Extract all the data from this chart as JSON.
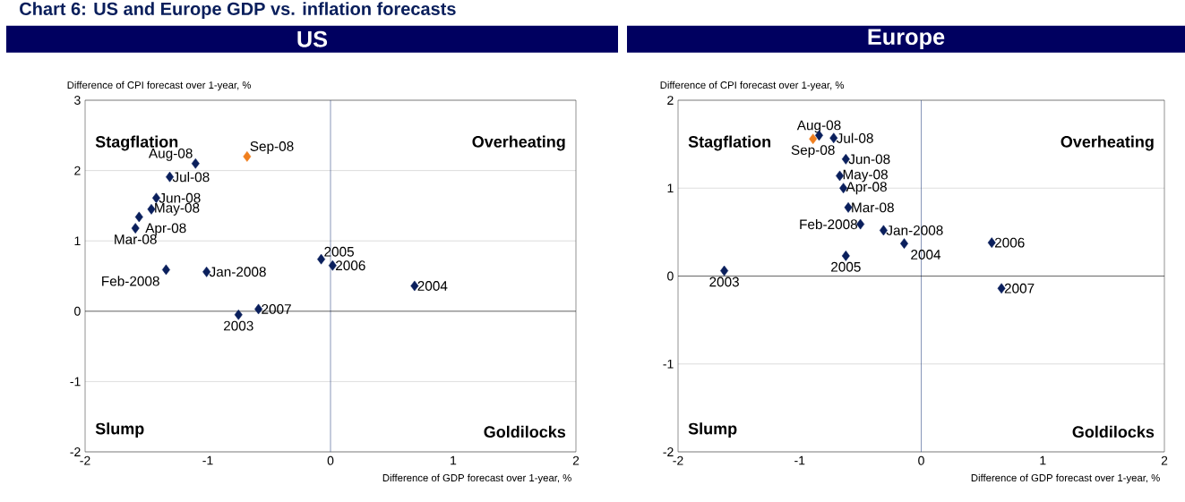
{
  "chart_data": [
    {
      "type": "scatter",
      "title": "US",
      "xlabel": "Difference of GDP forecast over 1-year, %",
      "ylabel": "Difference of CPI forecast over 1-year, %",
      "annotations": [
        "Chart 6: US and Europe GDP vs. inflation forecasts",
        "Stagflation",
        "Overheating",
        "Slump",
        "Goldilocks",
        {
          "text": "Sep-08",
          "x": -0.68,
          "y": 2.2
        },
        {
          "text": "Aug-08",
          "x": -1.1,
          "y": 2.1
        },
        {
          "text": "Jul-08",
          "x": -1.31,
          "y": 1.91
        },
        {
          "text": "Jun-08",
          "x": -1.42,
          "y": 1.61
        },
        {
          "text": "May-08",
          "x": -1.46,
          "y": 1.45
        },
        {
          "text": "Apr-08",
          "x": -1.56,
          "y": 1.34
        },
        {
          "text": "Mar-08",
          "x": -1.59,
          "y": 1.18
        },
        {
          "text": "Feb-2008",
          "x": -1.34,
          "y": 0.59
        },
        {
          "text": "Jan-2008",
          "x": -1.01,
          "y": 0.56
        },
        {
          "text": "2003",
          "x": -0.75,
          "y": -0.05
        },
        {
          "text": "2004",
          "x": 0.685,
          "y": 0.36
        },
        {
          "text": "2005",
          "x": -0.076,
          "y": 0.74
        },
        {
          "text": "2006",
          "x": 0.017,
          "y": 0.65
        },
        {
          "text": "2007",
          "x": -0.587,
          "y": 0.03
        }
      ],
      "series": [
        {
          "x": [
            -0.68,
            -1.1,
            -1.31,
            -1.42,
            -1.46,
            -1.56,
            -1.59,
            -1.34,
            -1.01,
            -0.75,
            0.685,
            -0.076,
            0.017,
            -0.587
          ],
          "values": [
            2.2,
            2.1,
            1.91,
            1.61,
            1.45,
            1.34,
            1.18,
            0.59,
            0.56,
            -0.05,
            0.36,
            0.74,
            0.65,
            0.03
          ],
          "colors": [
            "#f07f1e",
            "#0a1f5c",
            "#0a1f5c",
            "#0a1f5c",
            "#0a1f5c",
            "#0a1f5c",
            "#0a1f5c",
            "#0a1f5c",
            "#0a1f5c",
            "#0a1f5c",
            "#0a1f5c",
            "#0a1f5c",
            "#0a1f5c",
            "#0a1f5c"
          ]
        }
      ],
      "marker": "diamond",
      "grid": "y",
      "xlim": [
        -2,
        2
      ],
      "xticks": [
        -2,
        -1,
        0,
        1,
        2
      ],
      "ylim": [
        -2,
        3
      ],
      "yticks": [
        -2,
        -1,
        0,
        1,
        2,
        3
      ],
      "ref_lines": [
        {
          "axis": "x",
          "value": 0,
          "color": "#1f3a7a"
        },
        {
          "axis": "y",
          "value": 0,
          "color": "#000000"
        }
      ]
    },
    {
      "type": "scatter",
      "title": "Europe",
      "xlabel": "Difference of GDP forecast over 1-year, %",
      "ylabel": "Difference of CPI forecast over 1-year, %",
      "annotations": [
        "Stagflation",
        "Overheating",
        "Slump",
        "Goldilocks",
        {
          "text": "Sep-08",
          "x": -0.89,
          "y": 1.56
        },
        {
          "text": "Aug-08",
          "x": -0.84,
          "y": 1.6
        },
        {
          "text": "Jul-08",
          "x": -0.72,
          "y": 1.57
        },
        {
          "text": "Jun-08",
          "x": -0.62,
          "y": 1.33
        },
        {
          "text": "May-08",
          "x": -0.67,
          "y": 1.14
        },
        {
          "text": "Apr-08",
          "x": -0.64,
          "y": 1.0
        },
        {
          "text": "Mar-08",
          "x": -0.6,
          "y": 0.78
        },
        {
          "text": "Feb-2008",
          "x": -0.5,
          "y": 0.59
        },
        {
          "text": "Jan-2008",
          "x": -0.31,
          "y": 0.52
        },
        {
          "text": "2003",
          "x": -1.62,
          "y": 0.06
        },
        {
          "text": "2004",
          "x": -0.14,
          "y": 0.37
        },
        {
          "text": "2005",
          "x": -0.62,
          "y": 0.23
        },
        {
          "text": "2006",
          "x": 0.58,
          "y": 0.38
        },
        {
          "text": "2007",
          "x": 0.66,
          "y": -0.14
        }
      ],
      "series": [
        {
          "x": [
            -0.89,
            -0.84,
            -0.72,
            -0.62,
            -0.67,
            -0.64,
            -0.6,
            -0.5,
            -0.31,
            -1.62,
            -0.14,
            -0.62,
            0.58,
            0.66
          ],
          "values": [
            1.56,
            1.6,
            1.57,
            1.33,
            1.14,
            1.0,
            0.78,
            0.59,
            0.52,
            0.06,
            0.37,
            0.23,
            0.38,
            -0.14
          ],
          "colors": [
            "#f07f1e",
            "#0a1f5c",
            "#0a1f5c",
            "#0a1f5c",
            "#0a1f5c",
            "#0a1f5c",
            "#0a1f5c",
            "#0a1f5c",
            "#0a1f5c",
            "#0a1f5c",
            "#0a1f5c",
            "#0a1f5c",
            "#0a1f5c",
            "#0a1f5c"
          ]
        }
      ],
      "marker": "diamond",
      "grid": "y",
      "xlim": [
        -2,
        2
      ],
      "xticks": [
        -2,
        -1,
        0,
        1,
        2
      ],
      "ylim": [
        -2,
        2
      ],
      "yticks": [
        -2,
        -1,
        0,
        1,
        2
      ],
      "ref_lines": [
        {
          "axis": "x",
          "value": 0,
          "color": "#1f3a7a"
        },
        {
          "axis": "y",
          "value": 0,
          "color": "#000000"
        }
      ]
    }
  ]
}
